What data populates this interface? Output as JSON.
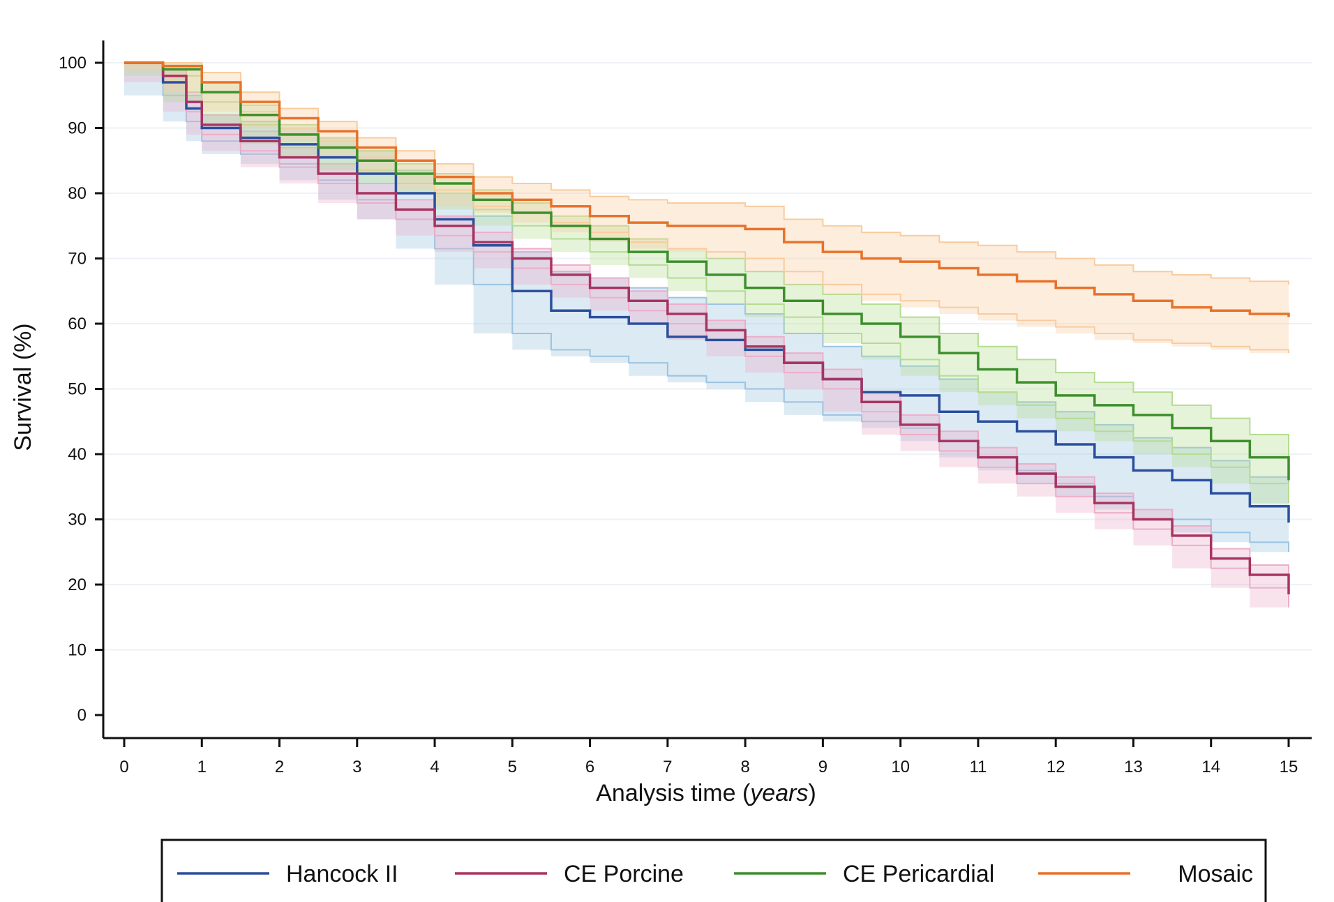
{
  "chart_data": {
    "type": "line",
    "xlabel_main": "Analysis time (",
    "xlabel_unit": "years",
    "xlabel_close": ")",
    "ylabel": "Survival (%)",
    "xlim": [
      0,
      15
    ],
    "ylim": [
      0,
      100
    ],
    "x_ticks": [
      0,
      1,
      2,
      3,
      4,
      5,
      6,
      7,
      8,
      9,
      10,
      11,
      12,
      13,
      14,
      15
    ],
    "y_ticks": [
      0,
      10,
      20,
      30,
      40,
      50,
      60,
      70,
      80,
      90,
      100
    ],
    "grid": "horizontal",
    "legend_position": "bottom",
    "series": [
      {
        "name": "Hancock II",
        "color": "#2b4f9e",
        "band_color": "#9cc3e0",
        "x": [
          0,
          0.5,
          0.8,
          1,
          1.5,
          2,
          2.5,
          3,
          3.5,
          4,
          4.5,
          5,
          5.5,
          6,
          6.5,
          7,
          7.5,
          8,
          8.5,
          9,
          9.5,
          10,
          10.5,
          11,
          11.5,
          12,
          12.5,
          13,
          13.5,
          14,
          14.5,
          15
        ],
        "y": [
          100,
          97,
          93,
          90,
          88.5,
          87.5,
          85.5,
          83,
          80,
          76,
          72,
          65,
          62,
          61,
          60,
          58,
          57.5,
          56,
          54,
          51.5,
          49.5,
          49,
          46.5,
          45,
          43.5,
          41.5,
          39.5,
          37.5,
          36,
          34,
          32,
          29.5
        ],
        "lower": [
          100,
          95,
          91,
          88,
          86,
          84.5,
          82,
          79,
          76,
          71.5,
          66,
          58.5,
          56,
          55,
          54,
          52,
          51,
          50,
          48,
          46,
          45,
          44,
          42,
          39.5,
          37.5,
          35.5,
          33.5,
          31.5,
          30,
          28,
          26.5,
          25
        ],
        "upper": [
          100,
          99,
          95,
          92,
          91,
          90,
          88.5,
          86.5,
          83.5,
          80,
          76.5,
          71,
          68,
          67,
          65.5,
          64,
          63,
          61.5,
          58.5,
          56.5,
          55,
          53.5,
          51.5,
          49.5,
          48,
          46.5,
          44.5,
          42.5,
          41,
          39,
          36.5,
          33.5
        ]
      },
      {
        "name": "CE Porcine",
        "color": "#a83461",
        "band_color": "#ecaec8",
        "x": [
          0,
          0.5,
          0.8,
          1,
          1.5,
          2,
          2.5,
          3,
          3.5,
          4,
          4.5,
          5,
          5.5,
          6,
          6.5,
          7,
          7.5,
          8,
          8.5,
          9,
          9.5,
          10,
          10.5,
          11,
          11.5,
          12,
          12.5,
          13,
          13.5,
          14,
          14.5,
          15
        ],
        "y": [
          100,
          98,
          94,
          90.5,
          88,
          85.5,
          83,
          80,
          77.5,
          75,
          72.5,
          70,
          67.5,
          65.5,
          63.5,
          61.5,
          59,
          56.5,
          54,
          51.5,
          48,
          44.5,
          42,
          39.5,
          37,
          35,
          32.5,
          30,
          27.5,
          24,
          21.5,
          18.5
        ],
        "lower": [
          100,
          97,
          92.5,
          89,
          86.5,
          84,
          81.5,
          78.5,
          76,
          73.5,
          71,
          68.5,
          66,
          64,
          62,
          60,
          57.5,
          55,
          52.5,
          50,
          46.5,
          43,
          40.5,
          38,
          35.5,
          33.5,
          31,
          28.5,
          26,
          22.5,
          19.5,
          16.5
        ],
        "upper": [
          100,
          99,
          95.5,
          92,
          89.5,
          87,
          84.5,
          81.5,
          79,
          76.5,
          74,
          71.5,
          69,
          67,
          65,
          63,
          60.5,
          58,
          55.5,
          53,
          49.5,
          46,
          43.5,
          41,
          38.5,
          36.5,
          34,
          31.5,
          29,
          25.5,
          23,
          21
        ]
      },
      {
        "name": "CE Pericardial",
        "color": "#3d8f2c",
        "band_color": "#b5dc92",
        "x": [
          0,
          0.5,
          1,
          1.5,
          2,
          2.5,
          3,
          3.5,
          4,
          4.5,
          5,
          5.5,
          6,
          6.5,
          7,
          7.5,
          8,
          8.5,
          9,
          9.5,
          10,
          10.5,
          11,
          11.5,
          12,
          12.5,
          13,
          13.5,
          14,
          14.5,
          15
        ],
        "y": [
          100,
          99,
          95.5,
          92,
          89,
          87,
          85,
          83,
          81.5,
          79,
          77,
          75,
          73,
          71,
          69.5,
          67.5,
          65.5,
          63.5,
          61.5,
          60,
          58,
          55.5,
          53,
          51,
          49,
          47.5,
          46,
          44,
          42,
          39.5,
          36
        ],
        "lower": [
          100,
          98,
          94,
          90.5,
          87.5,
          85.5,
          83.5,
          81.5,
          80,
          77.5,
          75,
          73,
          71,
          69,
          67,
          65,
          63,
          61,
          58.5,
          57,
          54.5,
          52,
          49.5,
          47.5,
          45.5,
          43.5,
          42,
          40,
          38,
          35.5,
          32.5
        ],
        "upper": [
          100,
          100,
          97,
          93.5,
          90.5,
          88.5,
          86.5,
          84.5,
          83,
          80.5,
          78.5,
          76.5,
          75,
          73,
          71.5,
          70,
          68,
          66,
          64.5,
          63,
          61,
          58.5,
          56.5,
          54.5,
          52.5,
          51,
          49.5,
          47.5,
          45.5,
          43,
          39.5
        ]
      },
      {
        "name": "Mosaic",
        "color": "#e8722a",
        "band_color": "#f8cc9f",
        "x": [
          0,
          0.5,
          1,
          1.5,
          2,
          2.5,
          3,
          3.5,
          4,
          4.5,
          5,
          5.5,
          6,
          6.5,
          7,
          7.5,
          8,
          8.5,
          9,
          9.5,
          10,
          10.5,
          11,
          11.5,
          12,
          12.5,
          13,
          13.5,
          14,
          14.5,
          15
        ],
        "y": [
          100,
          99.5,
          97,
          94,
          91.5,
          89.5,
          87,
          85,
          82.5,
          80,
          79,
          78,
          76.5,
          75.5,
          75,
          75,
          74.5,
          72.5,
          71,
          70,
          69.5,
          68.5,
          67.5,
          66.5,
          65.5,
          64.5,
          63.5,
          62.5,
          62,
          61.5,
          61
        ],
        "lower": [
          100,
          99,
          95.5,
          92.5,
          90,
          88,
          85.5,
          83,
          80.5,
          78,
          77,
          75.5,
          74,
          72.5,
          71.5,
          71,
          70,
          68,
          66,
          64.5,
          63.5,
          62.5,
          61.5,
          60.5,
          59.5,
          58.5,
          57.5,
          57,
          56.5,
          56,
          55.5
        ],
        "upper": [
          100,
          100,
          98.5,
          95.5,
          93,
          91,
          88.5,
          86.5,
          84.5,
          82.5,
          81.5,
          80.5,
          79.5,
          79,
          78.5,
          78.5,
          78,
          76,
          75,
          74,
          73.5,
          72.5,
          72,
          71,
          70,
          69,
          68,
          67.5,
          67,
          66.5,
          66
        ]
      }
    ]
  }
}
